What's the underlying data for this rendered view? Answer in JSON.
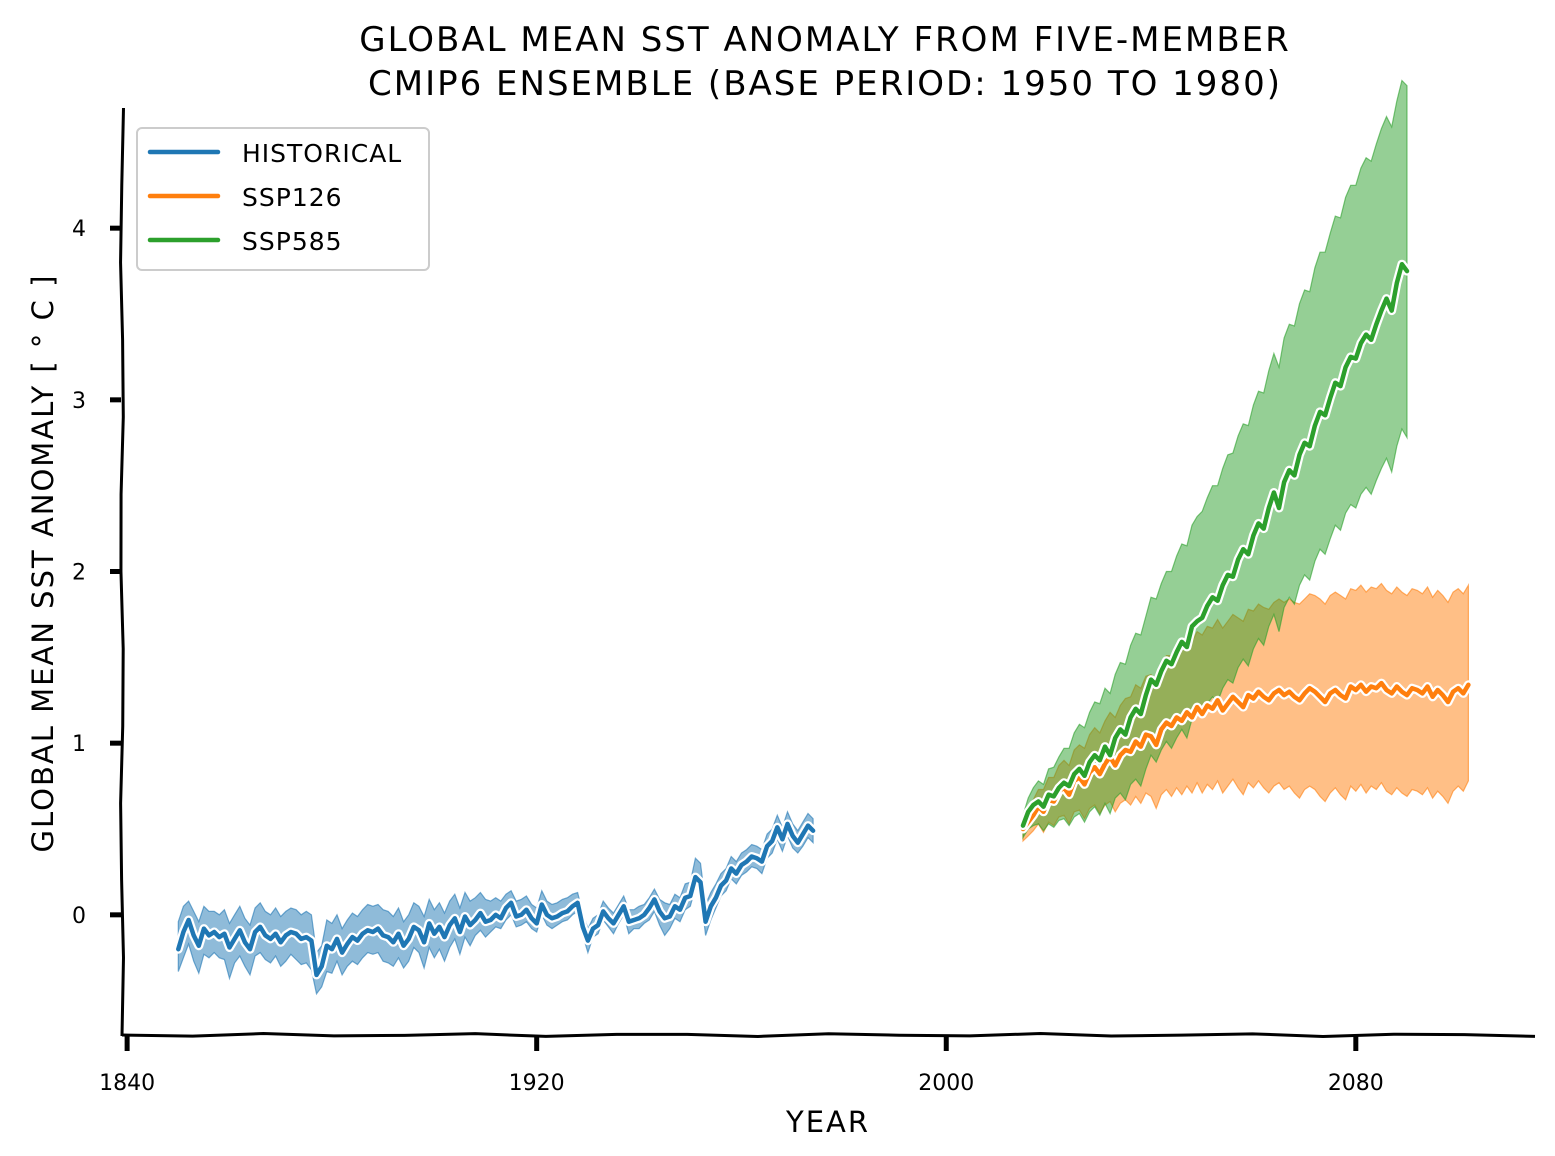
{
  "chart_data": {
    "type": "line",
    "title_lines": [
      "Global mean SST anomaly from five-member",
      "CMIP6 ensemble (base period: 1950 to 1980)"
    ],
    "xlabel": "Year",
    "ylabel": "Global mean SST anomaly [ ° C ]",
    "xlim": [
      1839,
      2115
    ],
    "ylim": [
      -0.7,
      4.7
    ],
    "xticks": [
      1840,
      1920,
      2000,
      2080
    ],
    "yticks": [
      0,
      1,
      2,
      3,
      4
    ],
    "grid": false,
    "legend_position": "top-left",
    "series": [
      {
        "name": "historical",
        "color": "#1f77b4",
        "band_color": "#1f77b4",
        "x_start": 1850,
        "mean": [
          -0.2,
          -0.1,
          -0.03,
          -0.12,
          -0.18,
          -0.08,
          -0.12,
          -0.1,
          -0.13,
          -0.11,
          -0.19,
          -0.14,
          -0.09,
          -0.16,
          -0.2,
          -0.1,
          -0.07,
          -0.12,
          -0.14,
          -0.11,
          -0.16,
          -0.12,
          -0.1,
          -0.11,
          -0.14,
          -0.13,
          -0.15,
          -0.35,
          -0.3,
          -0.18,
          -0.2,
          -0.14,
          -0.22,
          -0.17,
          -0.13,
          -0.15,
          -0.11,
          -0.09,
          -0.1,
          -0.08,
          -0.12,
          -0.13,
          -0.16,
          -0.11,
          -0.18,
          -0.14,
          -0.07,
          -0.09,
          -0.16,
          -0.05,
          -0.11,
          -0.07,
          -0.13,
          -0.06,
          -0.02,
          -0.1,
          -0.01,
          -0.06,
          -0.03,
          0.01,
          -0.04,
          -0.03,
          0.0,
          -0.02,
          0.04,
          0.07,
          -0.01,
          0.0,
          0.03,
          -0.02,
          -0.05,
          0.06,
          0.0,
          -0.02,
          -0.01,
          0.01,
          0.02,
          0.05,
          0.07,
          -0.07,
          -0.15,
          -0.08,
          -0.06,
          0.02,
          -0.02,
          -0.05,
          0.0,
          0.05,
          -0.04,
          -0.03,
          -0.02,
          0.0,
          0.04,
          0.09,
          0.02,
          -0.02,
          -0.01,
          0.05,
          0.03,
          0.1,
          0.11,
          0.22,
          0.19,
          -0.04,
          0.05,
          0.1,
          0.17,
          0.2,
          0.27,
          0.24,
          0.29,
          0.31,
          0.34,
          0.33,
          0.31,
          0.4,
          0.43,
          0.51,
          0.44,
          0.53,
          0.46,
          0.42,
          0.47,
          0.52,
          0.49
        ],
        "lower": [
          -0.33,
          -0.25,
          -0.17,
          -0.27,
          -0.34,
          -0.23,
          -0.25,
          -0.22,
          -0.25,
          -0.26,
          -0.37,
          -0.28,
          -0.24,
          -0.3,
          -0.35,
          -0.24,
          -0.22,
          -0.26,
          -0.28,
          -0.24,
          -0.3,
          -0.27,
          -0.23,
          -0.26,
          -0.29,
          -0.28,
          -0.32,
          -0.46,
          -0.42,
          -0.33,
          -0.34,
          -0.27,
          -0.35,
          -0.3,
          -0.27,
          -0.29,
          -0.25,
          -0.22,
          -0.23,
          -0.22,
          -0.27,
          -0.28,
          -0.3,
          -0.25,
          -0.31,
          -0.27,
          -0.19,
          -0.22,
          -0.31,
          -0.19,
          -0.25,
          -0.2,
          -0.27,
          -0.19,
          -0.14,
          -0.23,
          -0.13,
          -0.18,
          -0.12,
          -0.09,
          -0.13,
          -0.1,
          -0.07,
          -0.08,
          -0.03,
          0.0,
          -0.07,
          -0.06,
          -0.04,
          -0.08,
          -0.1,
          0.0,
          -0.06,
          -0.08,
          -0.06,
          -0.04,
          -0.03,
          0.0,
          0.02,
          -0.12,
          -0.22,
          -0.13,
          -0.11,
          -0.03,
          -0.07,
          -0.11,
          -0.05,
          0.0,
          -0.11,
          -0.08,
          -0.08,
          -0.05,
          -0.03,
          0.02,
          -0.06,
          -0.12,
          -0.08,
          -0.02,
          -0.04,
          0.03,
          0.05,
          0.16,
          0.13,
          -0.12,
          -0.03,
          0.04,
          0.11,
          0.14,
          0.21,
          0.18,
          0.23,
          0.25,
          0.28,
          0.27,
          0.24,
          0.33,
          0.36,
          0.44,
          0.37,
          0.46,
          0.39,
          0.36,
          0.4,
          0.45,
          0.42
        ],
        "upper": [
          -0.04,
          0.05,
          0.08,
          0.02,
          -0.04,
          0.05,
          0.02,
          0.02,
          0.0,
          0.03,
          -0.05,
          0.0,
          0.05,
          -0.02,
          -0.06,
          0.04,
          0.07,
          0.02,
          0.0,
          0.04,
          -0.01,
          0.02,
          0.04,
          0.03,
          0.0,
          0.02,
          0.0,
          -0.22,
          -0.18,
          -0.03,
          -0.05,
          0.0,
          -0.08,
          -0.03,
          0.01,
          -0.01,
          0.03,
          0.06,
          0.05,
          0.06,
          0.03,
          0.02,
          -0.01,
          0.04,
          -0.04,
          0.0,
          0.07,
          0.05,
          -0.01,
          0.09,
          0.03,
          0.07,
          0.01,
          0.08,
          0.12,
          0.04,
          0.13,
          0.08,
          0.1,
          0.13,
          0.09,
          0.08,
          0.1,
          0.08,
          0.12,
          0.14,
          0.08,
          0.09,
          0.11,
          0.06,
          0.04,
          0.14,
          0.08,
          0.06,
          0.07,
          0.09,
          0.1,
          0.12,
          0.13,
          0.01,
          -0.08,
          -0.02,
          0.0,
          0.08,
          0.04,
          0.01,
          0.06,
          0.11,
          0.03,
          0.03,
          0.05,
          0.06,
          0.1,
          0.15,
          0.09,
          0.07,
          0.06,
          0.12,
          0.1,
          0.18,
          0.19,
          0.33,
          0.3,
          0.06,
          0.13,
          0.18,
          0.24,
          0.27,
          0.34,
          0.31,
          0.36,
          0.38,
          0.41,
          0.4,
          0.38,
          0.47,
          0.5,
          0.58,
          0.51,
          0.6,
          0.53,
          0.49,
          0.54,
          0.59,
          0.56
        ]
      },
      {
        "name": "ssp126",
        "color": "#ff7f0e",
        "band_color": "#ff7f0e",
        "x_start": 2015,
        "mean": [
          0.5,
          0.54,
          0.58,
          0.63,
          0.6,
          0.67,
          0.66,
          0.72,
          0.74,
          0.7,
          0.78,
          0.8,
          0.76,
          0.83,
          0.86,
          0.82,
          0.88,
          0.92,
          0.87,
          0.93,
          0.96,
          0.95,
          1.01,
          0.98,
          1.05,
          1.04,
          0.99,
          1.08,
          1.12,
          1.1,
          1.15,
          1.13,
          1.18,
          1.15,
          1.21,
          1.17,
          1.22,
          1.2,
          1.25,
          1.19,
          1.23,
          1.27,
          1.24,
          1.21,
          1.28,
          1.26,
          1.3,
          1.27,
          1.25,
          1.29,
          1.31,
          1.28,
          1.3,
          1.27,
          1.25,
          1.29,
          1.32,
          1.3,
          1.27,
          1.24,
          1.29,
          1.31,
          1.28,
          1.26,
          1.33,
          1.31,
          1.34,
          1.3,
          1.33,
          1.32,
          1.35,
          1.31,
          1.29,
          1.33,
          1.3,
          1.28,
          1.32,
          1.31,
          1.29,
          1.33,
          1.27,
          1.31,
          1.28,
          1.24,
          1.3,
          1.32,
          1.29,
          1.34
        ],
        "lower": [
          0.43,
          0.46,
          0.49,
          0.53,
          0.48,
          0.54,
          0.52,
          0.57,
          0.58,
          0.53,
          0.6,
          0.61,
          0.56,
          0.62,
          0.64,
          0.59,
          0.64,
          0.66,
          0.6,
          0.65,
          0.67,
          0.64,
          0.69,
          0.65,
          0.71,
          0.69,
          0.62,
          0.7,
          0.73,
          0.69,
          0.74,
          0.7,
          0.75,
          0.71,
          0.77,
          0.71,
          0.76,
          0.73,
          0.78,
          0.71,
          0.75,
          0.79,
          0.74,
          0.7,
          0.77,
          0.74,
          0.78,
          0.74,
          0.71,
          0.75,
          0.77,
          0.73,
          0.75,
          0.71,
          0.68,
          0.73,
          0.75,
          0.73,
          0.69,
          0.66,
          0.71,
          0.74,
          0.7,
          0.67,
          0.75,
          0.72,
          0.76,
          0.71,
          0.75,
          0.73,
          0.77,
          0.72,
          0.7,
          0.74,
          0.71,
          0.69,
          0.73,
          0.72,
          0.7,
          0.74,
          0.68,
          0.72,
          0.69,
          0.65,
          0.72,
          0.75,
          0.72,
          0.78
        ],
        "upper": [
          0.56,
          0.62,
          0.67,
          0.73,
          0.73,
          0.8,
          0.8,
          0.87,
          0.9,
          0.87,
          0.96,
          0.99,
          0.97,
          1.05,
          1.09,
          1.06,
          1.13,
          1.18,
          1.15,
          1.22,
          1.26,
          1.27,
          1.34,
          1.32,
          1.39,
          1.4,
          1.37,
          1.46,
          1.51,
          1.51,
          1.56,
          1.56,
          1.61,
          1.59,
          1.65,
          1.63,
          1.68,
          1.67,
          1.72,
          1.67,
          1.71,
          1.75,
          1.73,
          1.71,
          1.78,
          1.77,
          1.81,
          1.79,
          1.78,
          1.82,
          1.84,
          1.82,
          1.84,
          1.82,
          1.81,
          1.84,
          1.87,
          1.86,
          1.84,
          1.81,
          1.86,
          1.88,
          1.86,
          1.84,
          1.9,
          1.89,
          1.92,
          1.88,
          1.91,
          1.9,
          1.93,
          1.89,
          1.87,
          1.91,
          1.88,
          1.86,
          1.9,
          1.89,
          1.87,
          1.91,
          1.85,
          1.89,
          1.86,
          1.82,
          1.88,
          1.9,
          1.87,
          1.92
        ]
      },
      {
        "name": "ssp585",
        "color": "#2ca02c",
        "band_color": "#2ca02c",
        "x_start": 2015,
        "mean": [
          0.52,
          0.6,
          0.64,
          0.66,
          0.63,
          0.7,
          0.69,
          0.74,
          0.77,
          0.75,
          0.82,
          0.85,
          0.81,
          0.89,
          0.93,
          0.9,
          0.98,
          0.93,
          1.03,
          1.08,
          1.05,
          1.15,
          1.2,
          1.17,
          1.28,
          1.37,
          1.34,
          1.42,
          1.48,
          1.46,
          1.53,
          1.59,
          1.56,
          1.68,
          1.71,
          1.73,
          1.8,
          1.85,
          1.83,
          1.92,
          1.98,
          1.97,
          2.07,
          2.13,
          2.1,
          2.21,
          2.28,
          2.25,
          2.37,
          2.46,
          2.37,
          2.52,
          2.59,
          2.56,
          2.68,
          2.75,
          2.73,
          2.85,
          2.93,
          2.91,
          3.01,
          3.1,
          3.08,
          3.19,
          3.25,
          3.24,
          3.33,
          3.38,
          3.35,
          3.44,
          3.52,
          3.59,
          3.52,
          3.68,
          3.79,
          3.75
        ],
        "lower": [
          0.45,
          0.5,
          0.52,
          0.53,
          0.49,
          0.53,
          0.51,
          0.55,
          0.56,
          0.52,
          0.57,
          0.59,
          0.54,
          0.6,
          0.63,
          0.58,
          0.65,
          0.59,
          0.68,
          0.71,
          0.67,
          0.76,
          0.79,
          0.75,
          0.85,
          0.93,
          0.89,
          0.96,
          1.01,
          0.97,
          1.03,
          1.08,
          1.03,
          1.14,
          1.16,
          1.17,
          1.23,
          1.27,
          1.24,
          1.32,
          1.37,
          1.35,
          1.44,
          1.49,
          1.45,
          1.55,
          1.61,
          1.57,
          1.68,
          1.75,
          1.65,
          1.79,
          1.85,
          1.81,
          1.92,
          1.98,
          1.95,
          2.06,
          2.13,
          2.1,
          2.19,
          2.27,
          2.24,
          2.34,
          2.39,
          2.37,
          2.45,
          2.49,
          2.45,
          2.53,
          2.6,
          2.66,
          2.58,
          2.73,
          2.83,
          2.78
        ],
        "upper": [
          0.58,
          0.68,
          0.74,
          0.78,
          0.76,
          0.85,
          0.86,
          0.92,
          0.97,
          0.97,
          1.06,
          1.11,
          1.09,
          1.18,
          1.24,
          1.23,
          1.32,
          1.29,
          1.4,
          1.47,
          1.46,
          1.57,
          1.64,
          1.63,
          1.74,
          1.85,
          1.84,
          1.93,
          2.0,
          2.0,
          2.09,
          2.16,
          2.15,
          2.27,
          2.32,
          2.35,
          2.43,
          2.5,
          2.5,
          2.6,
          2.68,
          2.69,
          2.79,
          2.86,
          2.85,
          2.97,
          3.05,
          3.04,
          3.17,
          3.27,
          3.19,
          3.36,
          3.44,
          3.43,
          3.56,
          3.64,
          3.63,
          3.77,
          3.86,
          3.86,
          3.97,
          4.07,
          4.06,
          4.18,
          4.25,
          4.25,
          4.35,
          4.41,
          4.39,
          4.49,
          4.58,
          4.65,
          4.59,
          4.74,
          4.86,
          4.83
        ]
      }
    ]
  }
}
